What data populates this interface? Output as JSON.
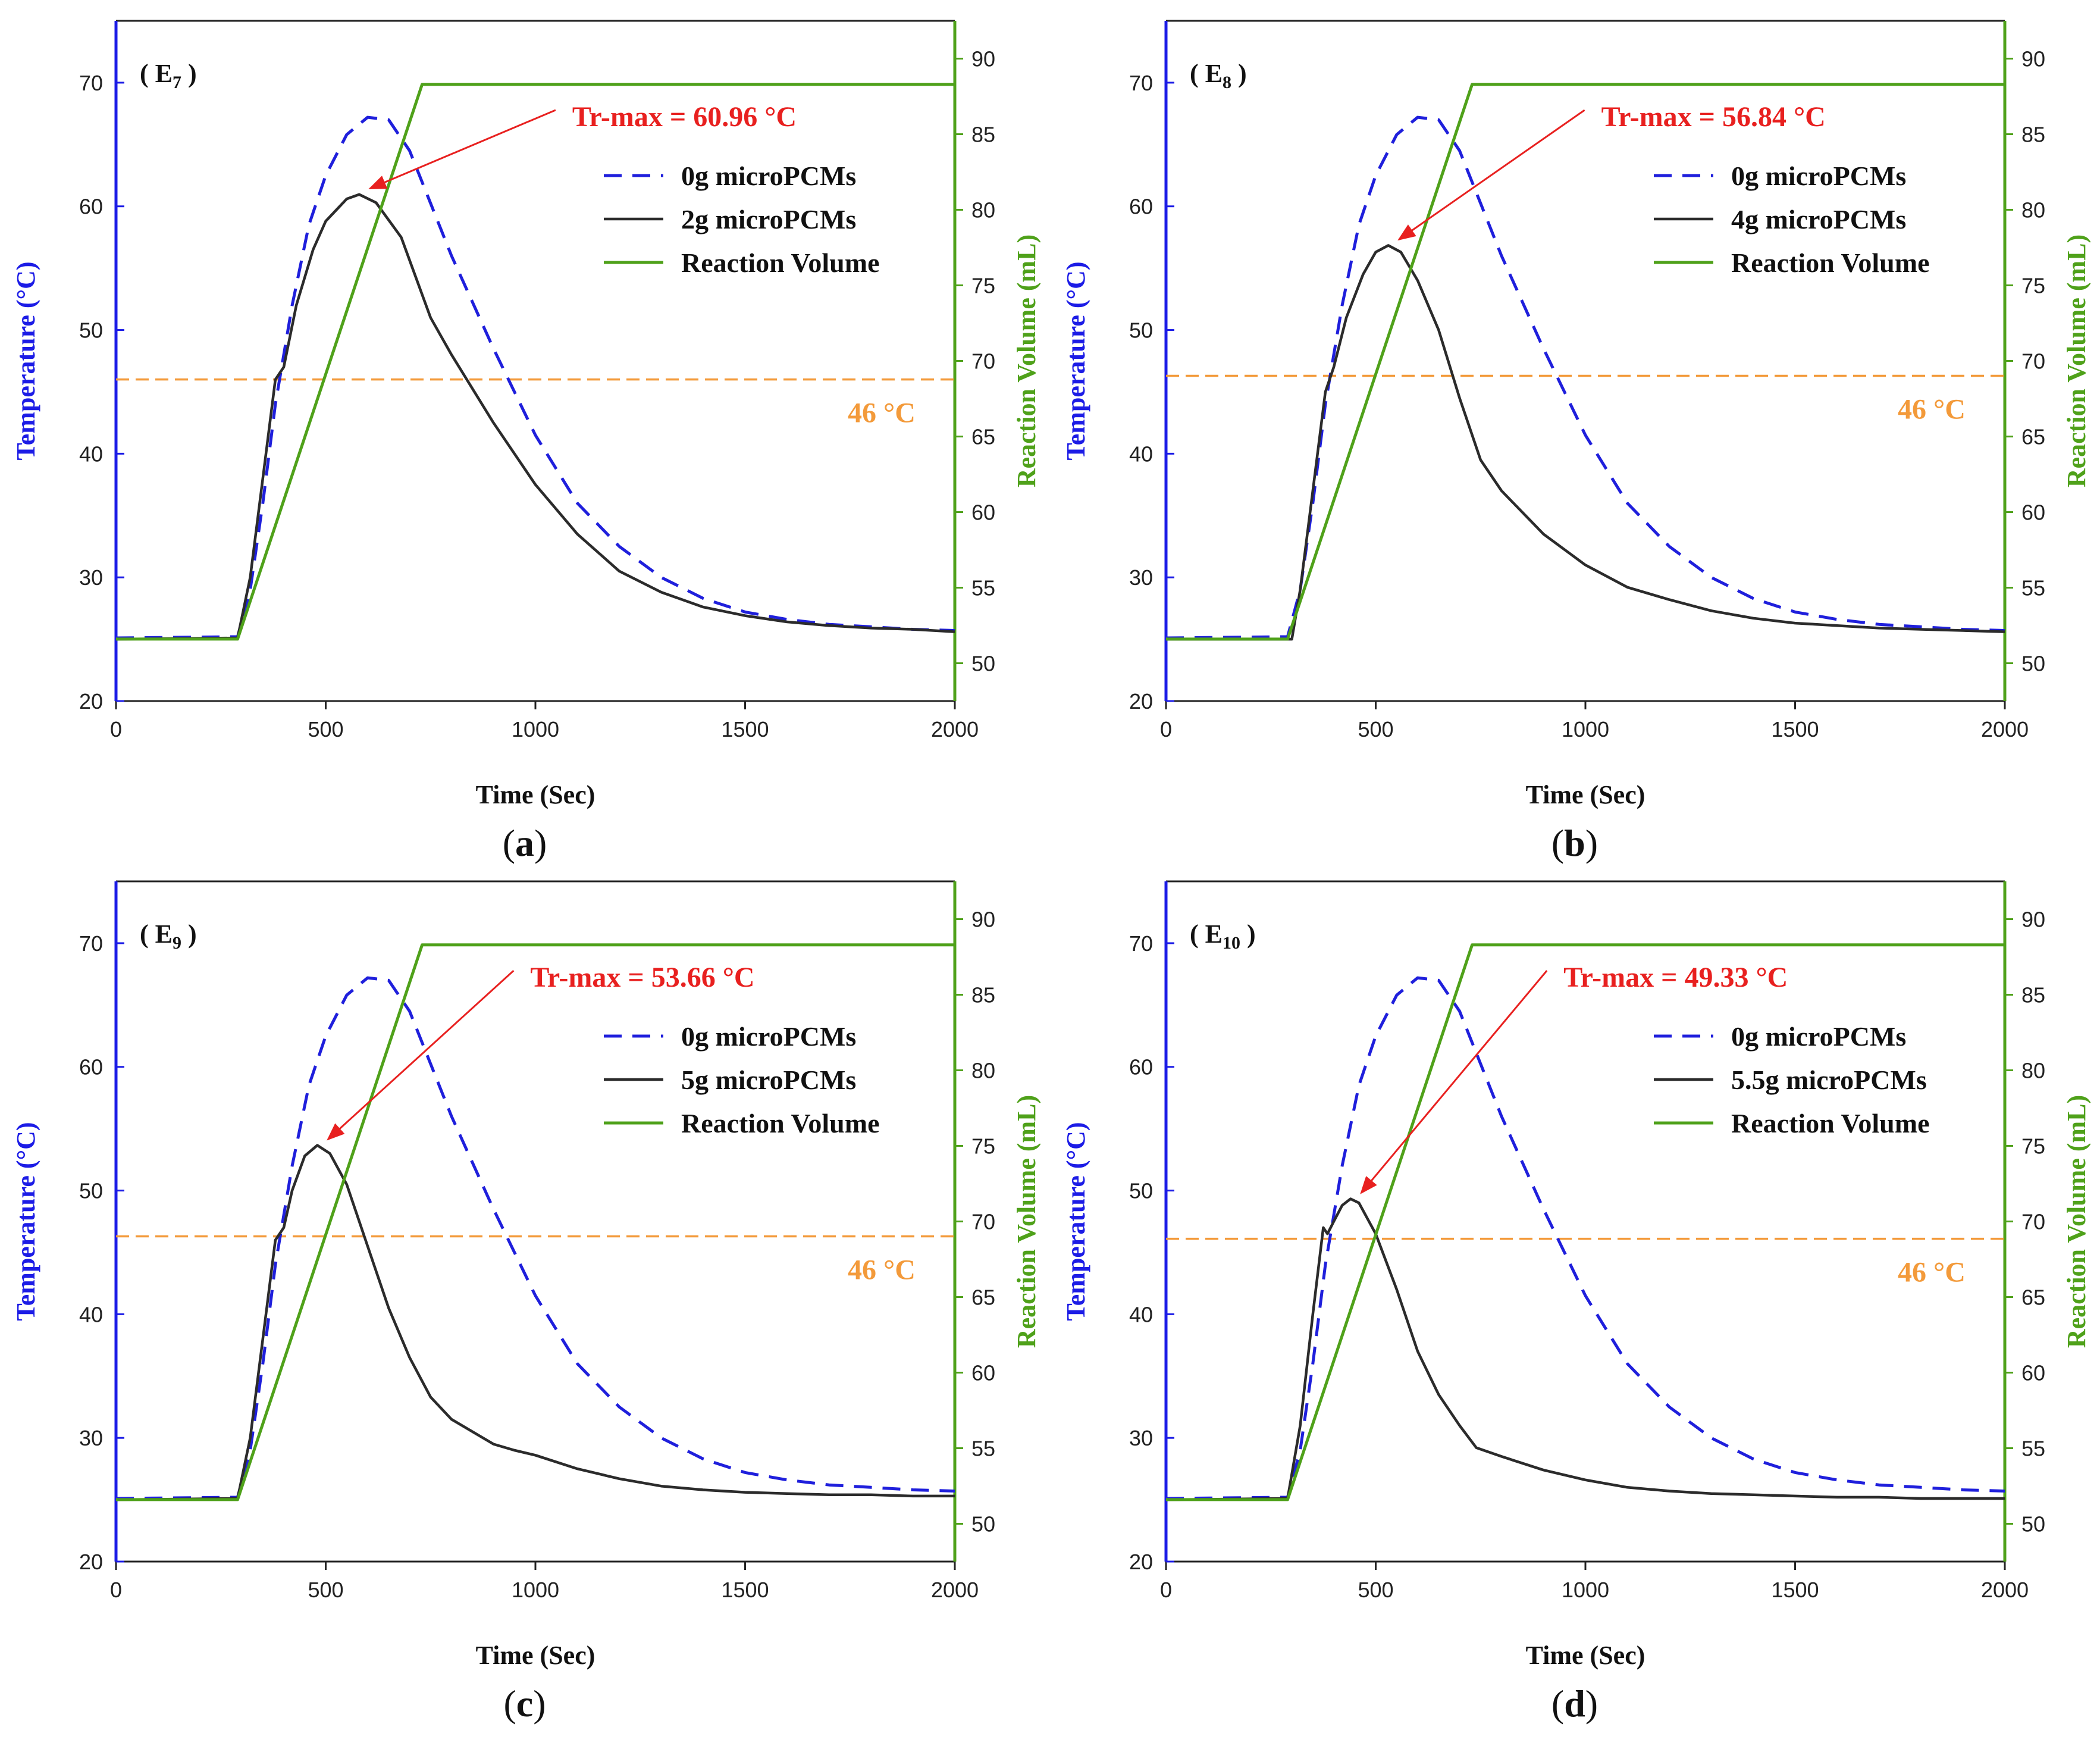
{
  "colors": {
    "baseline": "#1f1fdc",
    "pcm": "#2b2b2b",
    "volume": "#4fa11a",
    "threshold": "#f39a3a",
    "annotation": "#e8201f",
    "left_axis": "#1c1ce6",
    "right_axis": "#4fa11a"
  },
  "chart_data": [
    {
      "id": "a",
      "type": "line",
      "caption": {
        "open": "(",
        "letter": "a",
        "close": ")"
      },
      "panel": {
        "open": "( ",
        "main": "E",
        "sub": "7",
        "close": " )"
      },
      "xlabel": "Time (Sec)",
      "ylabel_left": "Temperature (°C)",
      "ylabel_right": "Reaction Volume (mL)",
      "xlim": [
        0,
        2000
      ],
      "ylim_left": [
        20,
        75
      ],
      "ylim_right": [
        47.5,
        92.5
      ],
      "xticks": [
        0,
        500,
        1000,
        1500,
        2000
      ],
      "yticks_left": [
        20,
        30,
        40,
        50,
        60,
        70
      ],
      "yticks_right": [
        50,
        55,
        60,
        65,
        70,
        75,
        80,
        85,
        90
      ],
      "threshold": {
        "value": 46,
        "label": "46 °C"
      },
      "annotation": {
        "label": "Tr-max = 60.96 °C",
        "peak_x": 580,
        "peak_y": 60.96
      },
      "legend": [
        "0g microPCMs",
        "2g microPCMs",
        "Reaction Volume"
      ],
      "series": [
        {
          "name": "0g microPCMs",
          "axis": "left",
          "x": [
            0,
            290,
            320,
            350,
            380,
            420,
            460,
            500,
            550,
            600,
            650,
            700,
            800,
            900,
            1000,
            1100,
            1200,
            1300,
            1400,
            1500,
            1600,
            1700,
            1800,
            1900,
            2000
          ],
          "y": [
            25.1,
            25.2,
            29,
            36,
            44,
            52,
            58.5,
            62.5,
            65.8,
            67.2,
            67,
            64.5,
            56,
            48.5,
            41.5,
            36,
            32.5,
            30,
            28.3,
            27.2,
            26.6,
            26.2,
            26,
            25.8,
            25.7
          ]
        },
        {
          "name": "2g microPCMs",
          "axis": "left",
          "x": [
            0,
            290,
            320,
            350,
            380,
            400,
            430,
            470,
            500,
            550,
            580,
            620,
            680,
            750,
            800,
            900,
            1000,
            1100,
            1200,
            1300,
            1400,
            1500,
            1600,
            1700,
            1800,
            1900,
            2000
          ],
          "y": [
            25,
            25.1,
            30,
            38,
            46,
            47,
            52,
            56.5,
            58.8,
            60.6,
            60.96,
            60.3,
            57.5,
            51,
            48,
            42.5,
            37.5,
            33.5,
            30.5,
            28.8,
            27.6,
            26.9,
            26.4,
            26.1,
            25.9,
            25.8,
            25.6
          ]
        },
        {
          "name": "Reaction Volume",
          "axis": "right",
          "x": [
            0,
            290,
            730,
            2000
          ],
          "y": [
            51.6,
            51.6,
            88.3,
            88.3
          ]
        }
      ]
    },
    {
      "id": "b",
      "type": "line",
      "caption": {
        "open": "(",
        "letter": "b",
        "close": ")"
      },
      "panel": {
        "open": "( ",
        "main": "E",
        "sub": "8",
        "close": " )"
      },
      "xlabel": "Time (Sec)",
      "ylabel_left": "Temperature (°C)",
      "ylabel_right": "Reaction Volume (mL)",
      "xlim": [
        0,
        2000
      ],
      "ylim_left": [
        20,
        75
      ],
      "ylim_right": [
        47.5,
        92.5
      ],
      "xticks": [
        0,
        500,
        1000,
        1500,
        2000
      ],
      "yticks_left": [
        20,
        30,
        40,
        50,
        60,
        70
      ],
      "yticks_right": [
        50,
        55,
        60,
        65,
        70,
        75,
        80,
        85,
        90
      ],
      "threshold": {
        "value": 46.3,
        "label": "46 °C"
      },
      "annotation": {
        "label": "Tr-max = 56.84 °C",
        "peak_x": 530,
        "peak_y": 56.84
      },
      "legend": [
        "0g microPCMs",
        "4g microPCMs",
        "Reaction Volume"
      ],
      "series": [
        {
          "name": "0g microPCMs",
          "axis": "left",
          "x": [
            0,
            290,
            320,
            350,
            380,
            420,
            460,
            500,
            550,
            600,
            650,
            700,
            800,
            900,
            1000,
            1100,
            1200,
            1300,
            1400,
            1500,
            1600,
            1700,
            1800,
            1900,
            2000
          ],
          "y": [
            25.1,
            25.2,
            29,
            36,
            44,
            52,
            58.5,
            62.5,
            65.8,
            67.2,
            67,
            64.5,
            56,
            48.5,
            41.5,
            36,
            32.5,
            30,
            28.3,
            27.2,
            26.6,
            26.2,
            26,
            25.8,
            25.7
          ]
        },
        {
          "name": "4g microPCMs",
          "axis": "left",
          "x": [
            0,
            300,
            320,
            350,
            380,
            400,
            430,
            470,
            500,
            530,
            560,
            600,
            650,
            700,
            750,
            800,
            900,
            1000,
            1100,
            1200,
            1300,
            1400,
            1500,
            1600,
            1700,
            1800,
            1900,
            2000
          ],
          "y": [
            25,
            25,
            29,
            37,
            45,
            47,
            51,
            54.5,
            56.3,
            56.84,
            56.3,
            54,
            50,
            44.5,
            39.5,
            37,
            33.5,
            31,
            29.2,
            28.2,
            27.3,
            26.7,
            26.3,
            26.1,
            25.9,
            25.8,
            25.7,
            25.6
          ]
        },
        {
          "name": "Reaction Volume",
          "axis": "right",
          "x": [
            0,
            290,
            730,
            2000
          ],
          "y": [
            51.6,
            51.6,
            88.3,
            88.3
          ]
        }
      ]
    },
    {
      "id": "c",
      "type": "line",
      "caption": {
        "open": "(",
        "letter": "c",
        "close": ")"
      },
      "panel": {
        "open": "( ",
        "main": "E",
        "sub": "9",
        "close": " )"
      },
      "xlabel": "Time (Sec)",
      "ylabel_left": "Temperature (°C)",
      "ylabel_right": "Reaction Volume (mL)",
      "xlim": [
        0,
        2000
      ],
      "ylim_left": [
        20,
        75
      ],
      "ylim_right": [
        47.5,
        92.5
      ],
      "xticks": [
        0,
        500,
        1000,
        1500,
        2000
      ],
      "yticks_left": [
        20,
        30,
        40,
        50,
        60,
        70
      ],
      "yticks_right": [
        50,
        55,
        60,
        65,
        70,
        75,
        80,
        85,
        90
      ],
      "threshold": {
        "value": 46.3,
        "label": "46 °C"
      },
      "annotation": {
        "label": "Tr-max = 53.66 °C",
        "peak_x": 480,
        "peak_y": 53.66
      },
      "legend": [
        "0g microPCMs",
        "5g microPCMs",
        "Reaction Volume"
      ],
      "series": [
        {
          "name": "0g microPCMs",
          "axis": "left",
          "x": [
            0,
            290,
            320,
            350,
            380,
            420,
            460,
            500,
            550,
            600,
            650,
            700,
            800,
            900,
            1000,
            1100,
            1200,
            1300,
            1400,
            1500,
            1600,
            1700,
            1800,
            1900,
            2000
          ],
          "y": [
            25.1,
            25.2,
            29,
            36,
            44,
            52,
            58.5,
            62.5,
            65.8,
            67.2,
            67,
            64.5,
            56,
            48.5,
            41.5,
            36,
            32.5,
            30,
            28.3,
            27.2,
            26.6,
            26.2,
            26,
            25.8,
            25.7
          ]
        },
        {
          "name": "5g microPCMs",
          "axis": "left",
          "x": [
            0,
            290,
            320,
            350,
            380,
            400,
            420,
            450,
            480,
            510,
            550,
            600,
            650,
            700,
            750,
            800,
            900,
            950,
            1000,
            1100,
            1200,
            1300,
            1400,
            1500,
            1600,
            1700,
            1800,
            1900,
            2000
          ],
          "y": [
            25,
            25.1,
            30,
            38,
            46,
            47,
            50,
            52.8,
            53.66,
            53,
            50.5,
            45.5,
            40.5,
            36.5,
            33.3,
            31.5,
            29.5,
            29,
            28.6,
            27.5,
            26.7,
            26.1,
            25.8,
            25.6,
            25.5,
            25.4,
            25.4,
            25.3,
            25.3
          ]
        },
        {
          "name": "Reaction Volume",
          "axis": "right",
          "x": [
            0,
            290,
            730,
            2000
          ],
          "y": [
            51.6,
            51.6,
            88.3,
            88.3
          ]
        }
      ]
    },
    {
      "id": "d",
      "type": "line",
      "caption": {
        "open": "(",
        "letter": "d",
        "close": ")"
      },
      "panel": {
        "open": "( ",
        "main": "E",
        "sub": "10",
        "close": " )"
      },
      "xlabel": "Time (Sec)",
      "ylabel_left": "Temperature (°C)",
      "ylabel_right": "Reaction Volume (mL)",
      "xlim": [
        0,
        2000
      ],
      "ylim_left": [
        20,
        75
      ],
      "ylim_right": [
        47.5,
        92.5
      ],
      "xticks": [
        0,
        500,
        1000,
        1500,
        2000
      ],
      "yticks_left": [
        20,
        30,
        40,
        50,
        60,
        70
      ],
      "yticks_right": [
        50,
        55,
        60,
        65,
        70,
        75,
        80,
        85,
        90
      ],
      "threshold": {
        "value": 46.1,
        "label": "46 °C"
      },
      "annotation": {
        "label": "Tr-max = 49.33 °C",
        "peak_x": 440,
        "peak_y": 49.33
      },
      "legend": [
        "0g microPCMs",
        "5.5g microPCMs",
        "Reaction Volume"
      ],
      "series": [
        {
          "name": "0g microPCMs",
          "axis": "left",
          "x": [
            0,
            290,
            320,
            350,
            380,
            420,
            460,
            500,
            550,
            600,
            650,
            700,
            800,
            900,
            1000,
            1100,
            1200,
            1300,
            1400,
            1500,
            1600,
            1700,
            1800,
            1900,
            2000
          ],
          "y": [
            25.1,
            25.2,
            29,
            36,
            44,
            52,
            58.5,
            62.5,
            65.8,
            67.2,
            67,
            64.5,
            56,
            48.5,
            41.5,
            36,
            32.5,
            30,
            28.3,
            27.2,
            26.6,
            26.2,
            26,
            25.8,
            25.7
          ]
        },
        {
          "name": "5.5g microPCMs",
          "axis": "left",
          "x": [
            0,
            290,
            320,
            350,
            375,
            385,
            400,
            420,
            440,
            460,
            500,
            550,
            600,
            650,
            700,
            740,
            800,
            900,
            1000,
            1100,
            1200,
            1300,
            1400,
            1500,
            1600,
            1700,
            1800,
            1900,
            2000
          ],
          "y": [
            25,
            25.1,
            31,
            40,
            47,
            46.5,
            47.5,
            48.8,
            49.33,
            49,
            46.5,
            42,
            37,
            33.5,
            31,
            29.2,
            28.5,
            27.4,
            26.6,
            26,
            25.7,
            25.5,
            25.4,
            25.3,
            25.2,
            25.2,
            25.1,
            25.1,
            25.1
          ]
        },
        {
          "name": "Reaction Volume",
          "axis": "right",
          "x": [
            0,
            290,
            730,
            2000
          ],
          "y": [
            51.6,
            51.6,
            88.3,
            88.3
          ]
        }
      ]
    }
  ]
}
